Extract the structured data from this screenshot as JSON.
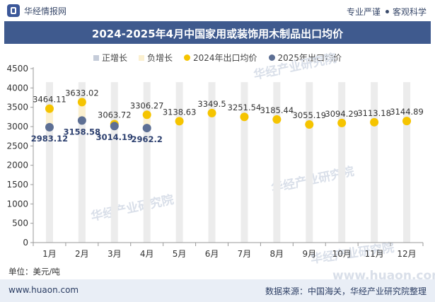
{
  "header": {
    "brand": "华经情报网",
    "slogan_left": "专业严谨",
    "slogan_right": "客观科学"
  },
  "watermarks": [
    "华经产业研究院",
    "华经产业研究院",
    "华经产业研究院",
    "华经产业研究院",
    "www.huaon.com"
  ],
  "chart_data": {
    "type": "scatter",
    "title": "2024-2025年4月中国家用或装饰用木制品出口均价",
    "categories": [
      "1月",
      "2月",
      "3月",
      "4月",
      "5月",
      "6月",
      "7月",
      "8月",
      "9月",
      "10月",
      "11月",
      "12月"
    ],
    "legend": [
      {
        "name": "正增长",
        "color": "#c5ccd9",
        "shape": "rect"
      },
      {
        "name": "负增长",
        "color": "#fbf0d0",
        "shape": "rect"
      },
      {
        "name": "2024年出口均价",
        "color": "#f5c400",
        "shape": "dot"
      },
      {
        "name": "2025年出口均价",
        "color": "#5d6f94",
        "shape": "dot"
      }
    ],
    "series": [
      {
        "name": "2024年出口均价",
        "color": "#f5c400",
        "values": [
          3464.11,
          3633.02,
          3063.72,
          3306.27,
          3138.63,
          3349.5,
          3251.54,
          3185.44,
          3055.19,
          3094.29,
          3113.18,
          3144.89
        ],
        "labels": [
          "3464.11",
          "3633.02",
          "3063.72",
          "3306.27",
          "3138.63",
          "3349.5",
          "3251.54",
          "3185.44",
          "3055.19",
          "3094.29",
          "3113.18",
          "3144.89"
        ]
      },
      {
        "name": "2025年出口均价",
        "color": "#5d6f94",
        "values": [
          2983.12,
          3158.58,
          3014.19,
          2962.2
        ],
        "labels": [
          "2983.12",
          "3158.58",
          "3014.19",
          "2962.2"
        ]
      }
    ],
    "ylim": [
      0,
      4500
    ],
    "yticks": [
      0,
      500,
      1000,
      1500,
      2000,
      2500,
      3000,
      3500,
      4000,
      4500
    ],
    "ytick_labels": [
      "0",
      "500",
      "1000",
      "1500",
      "2000",
      "2500",
      "3000",
      "3500",
      "4000",
      "4500"
    ],
    "background_bars": {
      "color": "#ececec",
      "value": 4150
    },
    "negative_change_color": "#fbf0d0",
    "unit": "单位：美元/吨"
  },
  "footer": {
    "site": "www.huaon.com",
    "source": "数据来源：中国海关，华经产业研究院整理"
  }
}
